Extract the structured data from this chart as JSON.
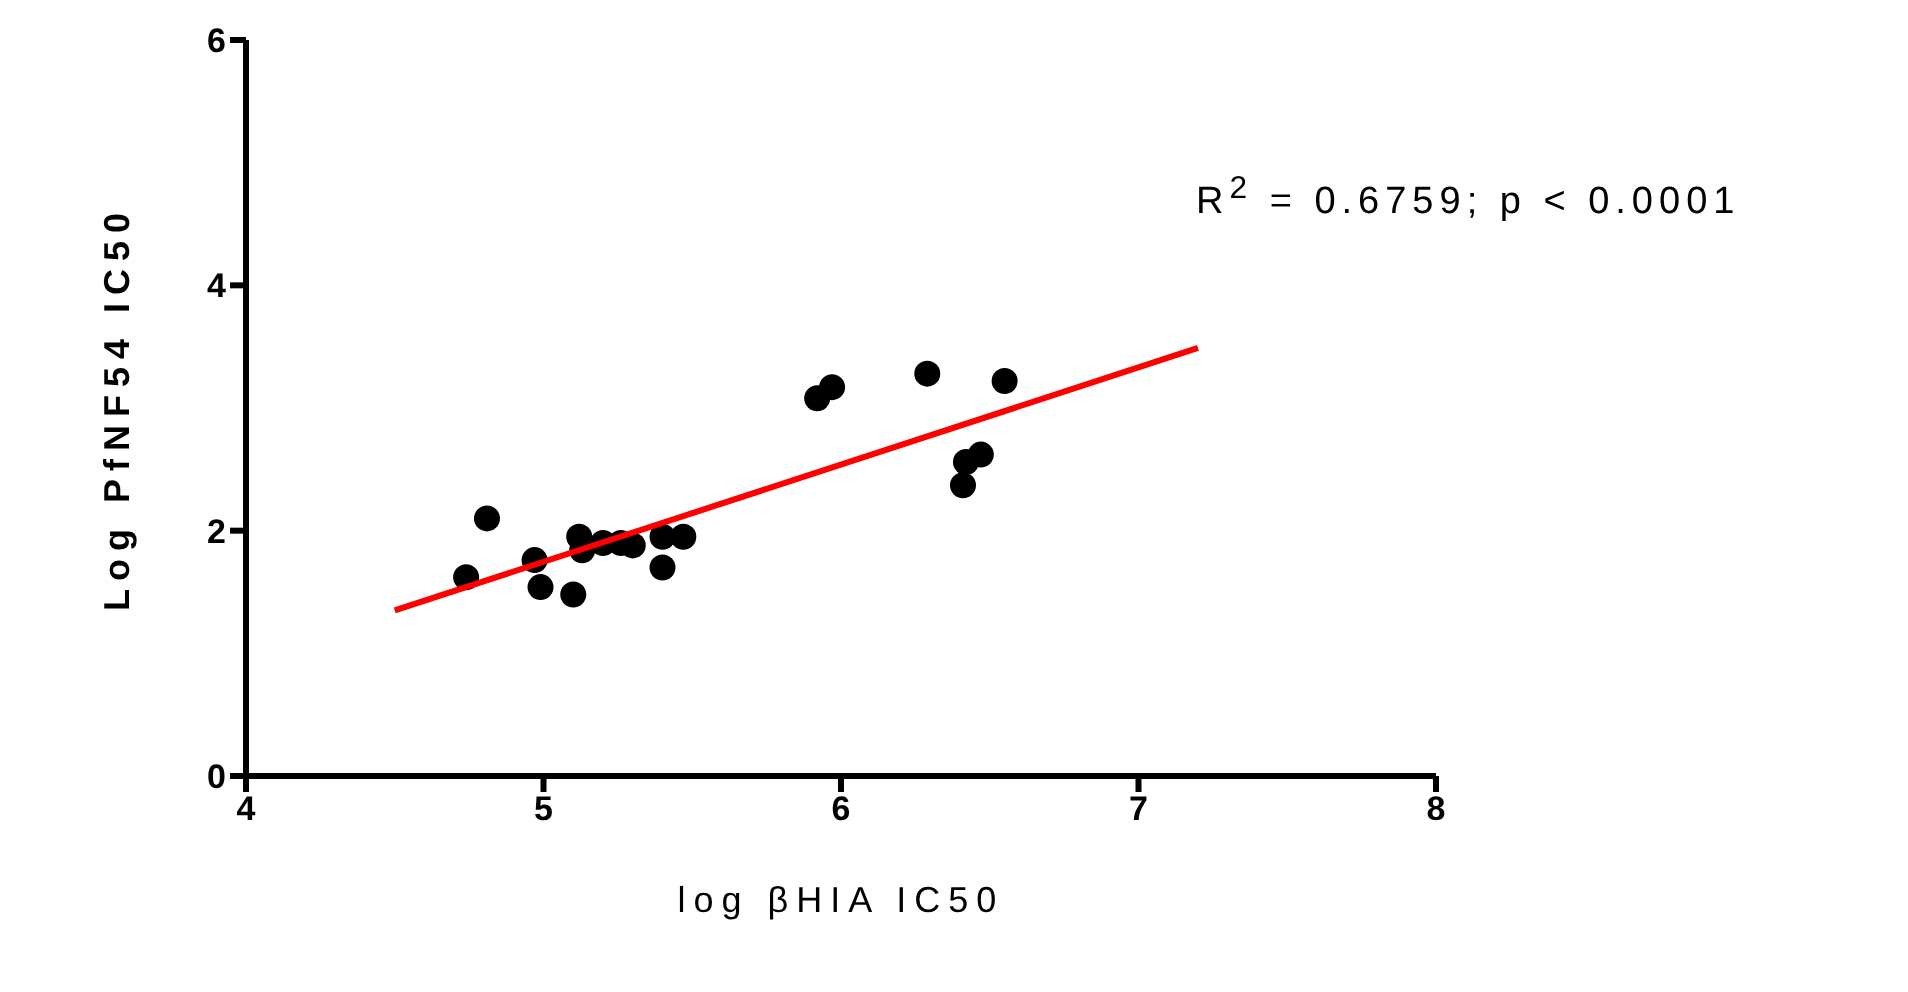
{
  "chart_data": {
    "type": "scatter",
    "xlabel": "log βHIA IC50",
    "ylabel": "Log PfNF54 IC50",
    "annotations": [
      "R$^{2}$ = 0.6759; p < 0.0001"
    ],
    "xlim": [
      4,
      8
    ],
    "xticks": [
      4,
      5,
      6,
      7,
      8
    ],
    "ylim": [
      0,
      6
    ],
    "yticks": [
      0,
      2,
      4,
      6
    ],
    "grid": false,
    "marker": "circle",
    "series": [
      {
        "color": "#000000",
        "x": [
          4.74,
          4.81,
          4.97,
          4.99,
          5.1,
          5.12,
          5.13,
          5.2,
          5.26,
          5.3,
          5.4,
          5.4,
          5.47,
          5.92,
          5.97,
          6.29,
          6.41,
          6.42,
          6.47,
          6.55
        ],
        "values": [
          1.62,
          2.1,
          1.76,
          1.54,
          1.48,
          1.95,
          1.84,
          1.9,
          1.9,
          1.88,
          1.95,
          1.7,
          1.95,
          3.08,
          3.17,
          3.28,
          2.37,
          2.56,
          2.62,
          3.22
        ]
      },
      {
        "type": "line",
        "color": "#ff0000",
        "x": [
          4.5,
          7.2
        ],
        "values": [
          1.35,
          3.49
        ],
        "marker": "none",
        "line_style": "solid"
      }
    ]
  }
}
